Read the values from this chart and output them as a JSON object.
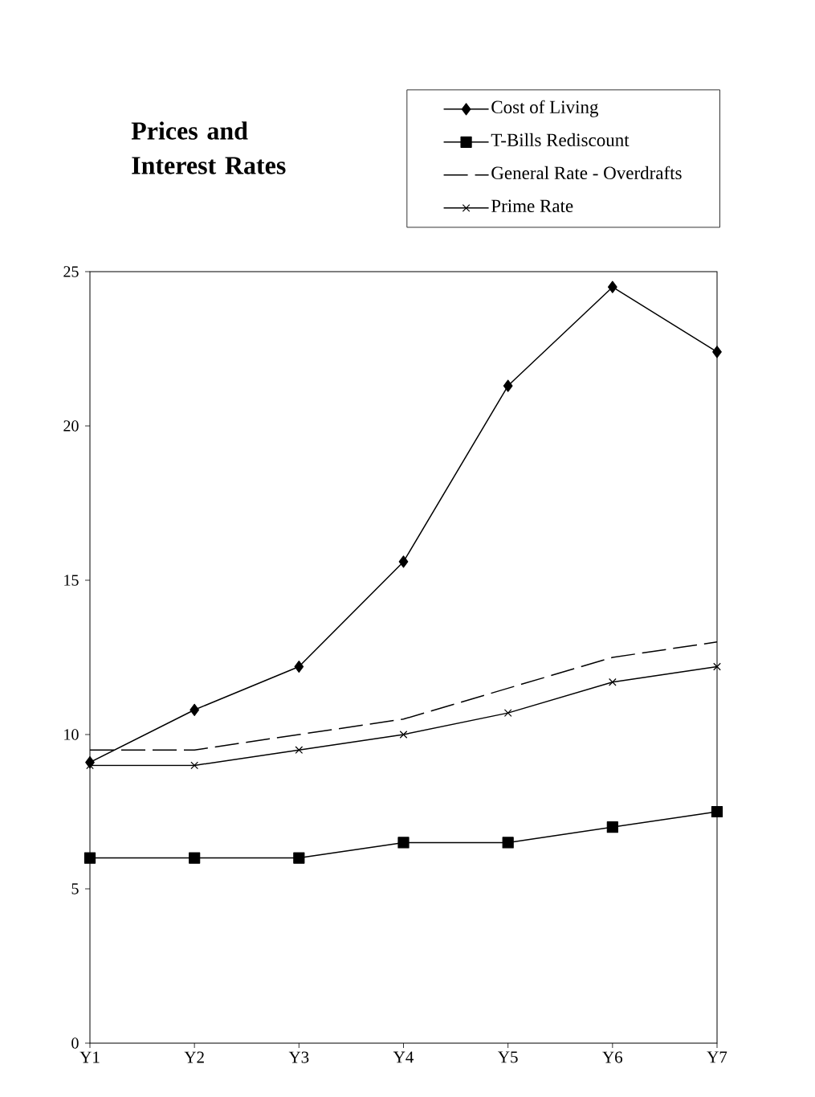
{
  "chart_data": {
    "type": "line",
    "title": "Prices and Interest Rates",
    "categories": [
      "Y1",
      "Y2",
      "Y3",
      "Y4",
      "Y5",
      "Y6",
      "Y7"
    ],
    "series": [
      {
        "name": "Cost of Living",
        "color": "#000000",
        "marker": "diamond",
        "values": [
          9.1,
          10.8,
          12.2,
          15.6,
          21.3,
          24.5,
          22.4
        ]
      },
      {
        "name": "T-Bills Rediscount",
        "color": "#000000",
        "marker": "square",
        "values": [
          6,
          6,
          6,
          6.5,
          6.5,
          7,
          7.5
        ]
      },
      {
        "name": "General Rate - Overdrafts",
        "color": "#000000",
        "marker": "none",
        "line_style": "dashed",
        "values": [
          9.5,
          9.5,
          10,
          10.5,
          11.5,
          12.5,
          13
        ]
      },
      {
        "name": "Prime Rate",
        "color": "#000000",
        "marker": "cross",
        "values": [
          9,
          9,
          9.5,
          10,
          10.7,
          11.7,
          12.2
        ]
      }
    ],
    "ylim": [
      0,
      25
    ],
    "yticks": [
      0,
      5,
      10,
      15,
      20,
      25
    ],
    "grid": false,
    "legend": "top right"
  }
}
